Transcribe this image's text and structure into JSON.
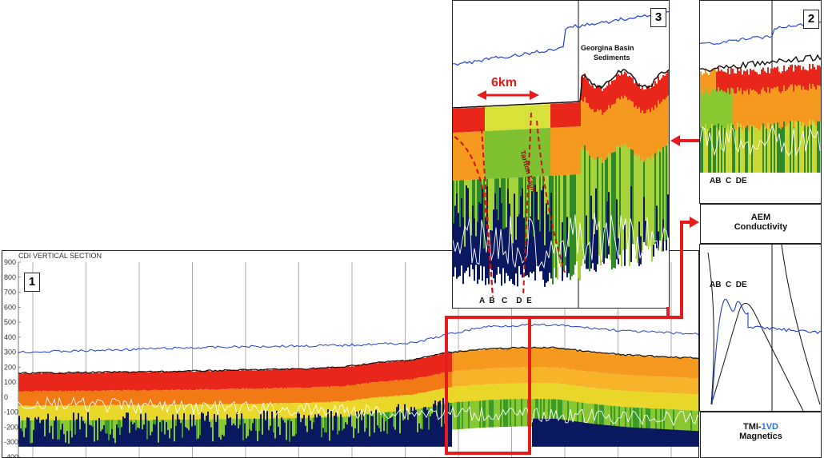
{
  "panel1": {
    "title": "CDI VERTICAL SECTION",
    "badge": "1"
  },
  "panel2": {
    "badge": "2",
    "letters": "AB  C  DE"
  },
  "panel3": {
    "badge": "3",
    "scale_label": "6km",
    "basin_label_line1": "Georgina Basin",
    "basin_label_line2": "Sediments",
    "fault_label": "Tarfton Fault",
    "letters": "A  B   C    D  E"
  },
  "legend_aem": {
    "line1": "AEM",
    "line2": "Conductivity"
  },
  "legend_tmi": {
    "prefix": "TMI-",
    "highlight": "1VD",
    "line2": "Magnetics"
  },
  "tmi_panel": {
    "letters": "AB  C  DE"
  },
  "colors": {
    "highlight_red": "#e41c1c",
    "tmi_blue": "#1f3fd0",
    "resistive_navy": "#0a1860",
    "conductive_red": "#e8261a",
    "vd_blue": "#2e6fd6"
  },
  "chart_data": {
    "type": "heatmap",
    "title": "CDI VERTICAL SECTION",
    "ylabel": "",
    "ylim": [
      -400,
      900
    ],
    "y_ticks": [
      900,
      800,
      700,
      600,
      500,
      400,
      300,
      200,
      100,
      0,
      -100,
      -200,
      -300,
      -400
    ],
    "series": [
      {
        "values": [
          300,
          305,
          310,
          318,
          325,
          330,
          335,
          340,
          342,
          345,
          355,
          360,
          420,
          470,
          480,
          480,
          460,
          440,
          430,
          420
        ]
      },
      {
        "values": [
          160,
          162,
          165,
          168,
          170,
          175,
          180,
          185,
          190,
          200,
          230,
          250,
          300,
          320,
          330,
          330,
          300,
          280,
          270,
          260
        ]
      }
    ]
  }
}
